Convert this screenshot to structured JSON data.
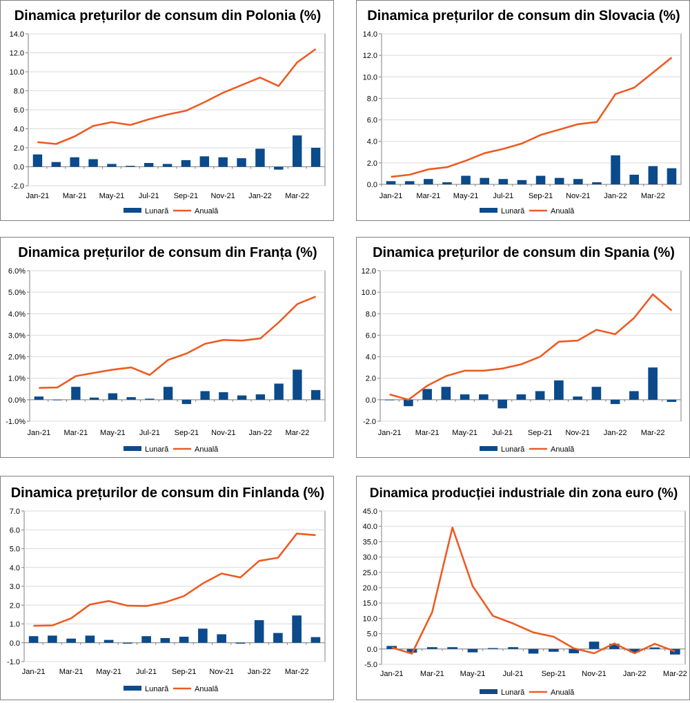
{
  "colors": {
    "monthly": "#0b4a8b",
    "annual": "#ed5a22",
    "grid": "#d9d9d9",
    "axis": "#7f7f7f"
  },
  "chart_data": [
    {
      "type": "bar+line",
      "title": "Dinamica prețurilor de consum din Polonia (%)",
      "categories": [
        "Jan-21",
        "Feb-21",
        "Mar-21",
        "Apr-21",
        "May-21",
        "Jun-21",
        "Jul-21",
        "Aug-21",
        "Sep-21",
        "Oct-21",
        "Nov-21",
        "Dec-21",
        "Jan-22",
        "Feb-22",
        "Mar-22",
        "Apr-22"
      ],
      "x_tick_labels": [
        "Jan-21",
        "",
        "Mar-21",
        "",
        "May-21",
        "",
        "Jul-21",
        "",
        "Sep-21",
        "",
        "Nov-21",
        "",
        "Jan-22",
        "",
        "Mar-22",
        ""
      ],
      "series": [
        {
          "name": "Lunară",
          "kind": "bar",
          "values": [
            1.3,
            0.5,
            1.0,
            0.8,
            0.3,
            0.1,
            0.4,
            0.3,
            0.7,
            1.1,
            1.0,
            0.9,
            1.9,
            -0.3,
            3.3,
            2.0
          ]
        },
        {
          "name": "Anuală",
          "kind": "line",
          "values": [
            2.6,
            2.4,
            3.2,
            4.3,
            4.7,
            4.4,
            5.0,
            5.5,
            5.9,
            6.8,
            7.8,
            8.6,
            9.4,
            8.5,
            11.0,
            12.4
          ]
        }
      ],
      "ylim": [
        -2,
        14
      ],
      "yticks": [
        -2,
        0,
        2,
        4,
        6,
        8,
        10,
        12,
        14
      ],
      "yformat": "fixed1",
      "legend": [
        "Lunară",
        "Anuală"
      ],
      "legend_position": "bottom"
    },
    {
      "type": "bar+line",
      "title": "Dinamica prețurilor de consum din Slovacia (%)",
      "categories": [
        "Jan-21",
        "Feb-21",
        "Mar-21",
        "Apr-21",
        "May-21",
        "Jun-21",
        "Jul-21",
        "Aug-21",
        "Sep-21",
        "Oct-21",
        "Nov-21",
        "Dec-21",
        "Jan-22",
        "Feb-22",
        "Mar-22",
        "Apr-22"
      ],
      "x_tick_labels": [
        "Jan-21",
        "",
        "Mar-21",
        "",
        "May-21",
        "",
        "Jul-21",
        "",
        "Sep-21",
        "",
        "Nov-21",
        "",
        "Jan-22",
        "",
        "Mar-22",
        ""
      ],
      "series": [
        {
          "name": "Lunară",
          "kind": "bar",
          "values": [
            0.3,
            0.3,
            0.5,
            0.2,
            0.8,
            0.6,
            0.5,
            0.4,
            0.8,
            0.6,
            0.5,
            0.2,
            2.7,
            0.9,
            1.7,
            1.5
          ]
        },
        {
          "name": "Anuală",
          "kind": "line",
          "values": [
            0.7,
            0.9,
            1.4,
            1.6,
            2.2,
            2.9,
            3.3,
            3.8,
            4.6,
            5.1,
            5.6,
            5.8,
            8.4,
            9.0,
            10.4,
            11.8
          ]
        }
      ],
      "ylim": [
        0,
        14
      ],
      "yticks": [
        0,
        2,
        4,
        6,
        8,
        10,
        12,
        14
      ],
      "yformat": "fixed1",
      "legend": [
        "Lunară",
        "Anuală"
      ],
      "legend_position": "bottom"
    },
    {
      "type": "bar+line",
      "title": "Dinamica prețurilor de consum din Franța (%)",
      "categories": [
        "Jan-21",
        "Feb-21",
        "Mar-21",
        "Apr-21",
        "May-21",
        "Jun-21",
        "Jul-21",
        "Aug-21",
        "Sep-21",
        "Oct-21",
        "Nov-21",
        "Dec-21",
        "Jan-22",
        "Feb-22",
        "Mar-22",
        "Apr-22"
      ],
      "x_tick_labels": [
        "Jan-21",
        "",
        "Mar-21",
        "",
        "May-21",
        "",
        "Jul-21",
        "",
        "Sep-21",
        "",
        "Nov-21",
        "",
        "Jan-22",
        "",
        "Mar-22",
        ""
      ],
      "series": [
        {
          "name": "Lunară",
          "kind": "bar",
          "values": [
            0.15,
            0.0,
            0.6,
            0.1,
            0.3,
            0.12,
            0.05,
            0.6,
            -0.2,
            0.4,
            0.35,
            0.2,
            0.25,
            0.75,
            1.4,
            0.45
          ]
        },
        {
          "name": "Anuală",
          "kind": "line",
          "values": [
            0.55,
            0.57,
            1.1,
            1.25,
            1.4,
            1.5,
            1.15,
            1.85,
            2.15,
            2.6,
            2.78,
            2.75,
            2.85,
            3.6,
            4.45,
            4.8
          ]
        }
      ],
      "ylim": [
        -1,
        6
      ],
      "yticks": [
        -1,
        0,
        1,
        2,
        3,
        4,
        5,
        6
      ],
      "yformat": "percent1",
      "legend": [
        "Lunară",
        "Anuală"
      ],
      "legend_position": "bottom"
    },
    {
      "type": "bar+line",
      "title": "Dinamica prețurilor de consum din Spania (%)",
      "categories": [
        "Jan-21",
        "Feb-21",
        "Mar-21",
        "Apr-21",
        "May-21",
        "Jun-21",
        "Jul-21",
        "Aug-21",
        "Sep-21",
        "Oct-21",
        "Nov-21",
        "Dec-21",
        "Jan-22",
        "Feb-22",
        "Mar-22",
        "Apr-22"
      ],
      "x_tick_labels": [
        "Jan-21",
        "",
        "Mar-21",
        "",
        "May-21",
        "",
        "Jul-21",
        "",
        "Sep-21",
        "",
        "Nov-21",
        "",
        "Jan-22",
        "",
        "Mar-22",
        ""
      ],
      "series": [
        {
          "name": "Lunară",
          "kind": "bar",
          "values": [
            0.0,
            -0.6,
            1.0,
            1.2,
            0.5,
            0.5,
            -0.8,
            0.5,
            0.8,
            1.8,
            0.3,
            1.2,
            -0.4,
            0.8,
            3.0,
            -0.2
          ]
        },
        {
          "name": "Anuală",
          "kind": "line",
          "values": [
            0.5,
            0.0,
            1.3,
            2.2,
            2.7,
            2.7,
            2.9,
            3.3,
            4.0,
            5.4,
            5.5,
            6.5,
            6.1,
            7.6,
            9.8,
            8.3
          ]
        }
      ],
      "ylim": [
        -2,
        12
      ],
      "yticks": [
        -2,
        0,
        2,
        4,
        6,
        8,
        10,
        12
      ],
      "yformat": "fixed1",
      "legend": [
        "Lunară",
        "Anuală"
      ],
      "legend_position": "bottom"
    },
    {
      "type": "bar+line",
      "title": "Dinamica prețurilor de consum din Finlanda (%)",
      "categories": [
        "Jan-21",
        "Feb-21",
        "Mar-21",
        "Apr-21",
        "May-21",
        "Jun-21",
        "Jul-21",
        "Aug-21",
        "Sep-21",
        "Oct-21",
        "Nov-21",
        "Dec-21",
        "Jan-22",
        "Feb-22",
        "Mar-22",
        "Apr-22"
      ],
      "x_tick_labels": [
        "Jan-21",
        "",
        "Mar-21",
        "",
        "May-21",
        "",
        "Jul-21",
        "",
        "Sep-21",
        "",
        "Nov-21",
        "",
        "Jan-22",
        "",
        "Mar-22",
        ""
      ],
      "series": [
        {
          "name": "Lunară",
          "kind": "bar",
          "values": [
            0.35,
            0.38,
            0.22,
            0.38,
            0.15,
            -0.05,
            0.35,
            0.25,
            0.32,
            0.75,
            0.45,
            -0.05,
            1.2,
            0.52,
            1.45,
            0.3
          ]
        },
        {
          "name": "Anuală",
          "kind": "line",
          "values": [
            0.9,
            0.92,
            1.3,
            2.03,
            2.22,
            1.97,
            1.95,
            2.15,
            2.48,
            3.15,
            3.68,
            3.47,
            4.35,
            4.52,
            5.8,
            5.72
          ]
        }
      ],
      "ylim": [
        -1,
        7
      ],
      "yticks": [
        -1,
        0,
        1,
        2,
        3,
        4,
        5,
        6,
        7
      ],
      "yformat": "fixed1",
      "legend": [
        "Lunară",
        "Anuală"
      ],
      "legend_position": "bottom"
    },
    {
      "type": "bar+line",
      "title": "Dinamica producției industriale din zona euro (%)",
      "categories": [
        "Jan-21",
        "Feb-21",
        "Mar-21",
        "Apr-21",
        "May-21",
        "Jun-21",
        "Jul-21",
        "Aug-21",
        "Sep-21",
        "Oct-21",
        "Nov-21",
        "Dec-21",
        "Jan-22",
        "Feb-22",
        "Mar-22"
      ],
      "x_tick_labels": [
        "Jan-21",
        "",
        "Mar-21",
        "",
        "May-21",
        "",
        "Jul-21",
        "",
        "Sep-21",
        "",
        "Nov-21",
        "",
        "Jan-22",
        "",
        "Mar-22"
      ],
      "series": [
        {
          "name": "Lunară",
          "kind": "bar",
          "values": [
            1.0,
            -1.2,
            0.6,
            0.6,
            -1.1,
            0.3,
            0.6,
            -1.5,
            -0.9,
            -1.4,
            2.4,
            1.7,
            -1.1,
            0.5,
            -1.8
          ]
        },
        {
          "name": "Anuală",
          "kind": "line",
          "values": [
            0.5,
            -1.5,
            12.0,
            39.6,
            20.5,
            10.8,
            8.3,
            5.4,
            4.0,
            0.2,
            -1.4,
            1.8,
            -1.4,
            1.7,
            -0.8
          ]
        }
      ],
      "ylim": [
        -5,
        45
      ],
      "yticks": [
        -5,
        0,
        5,
        10,
        15,
        20,
        25,
        30,
        35,
        40,
        45
      ],
      "yformat": "fixed1",
      "legend": [
        "Lunară",
        "Anuală"
      ],
      "legend_position": "bottom"
    }
  ]
}
